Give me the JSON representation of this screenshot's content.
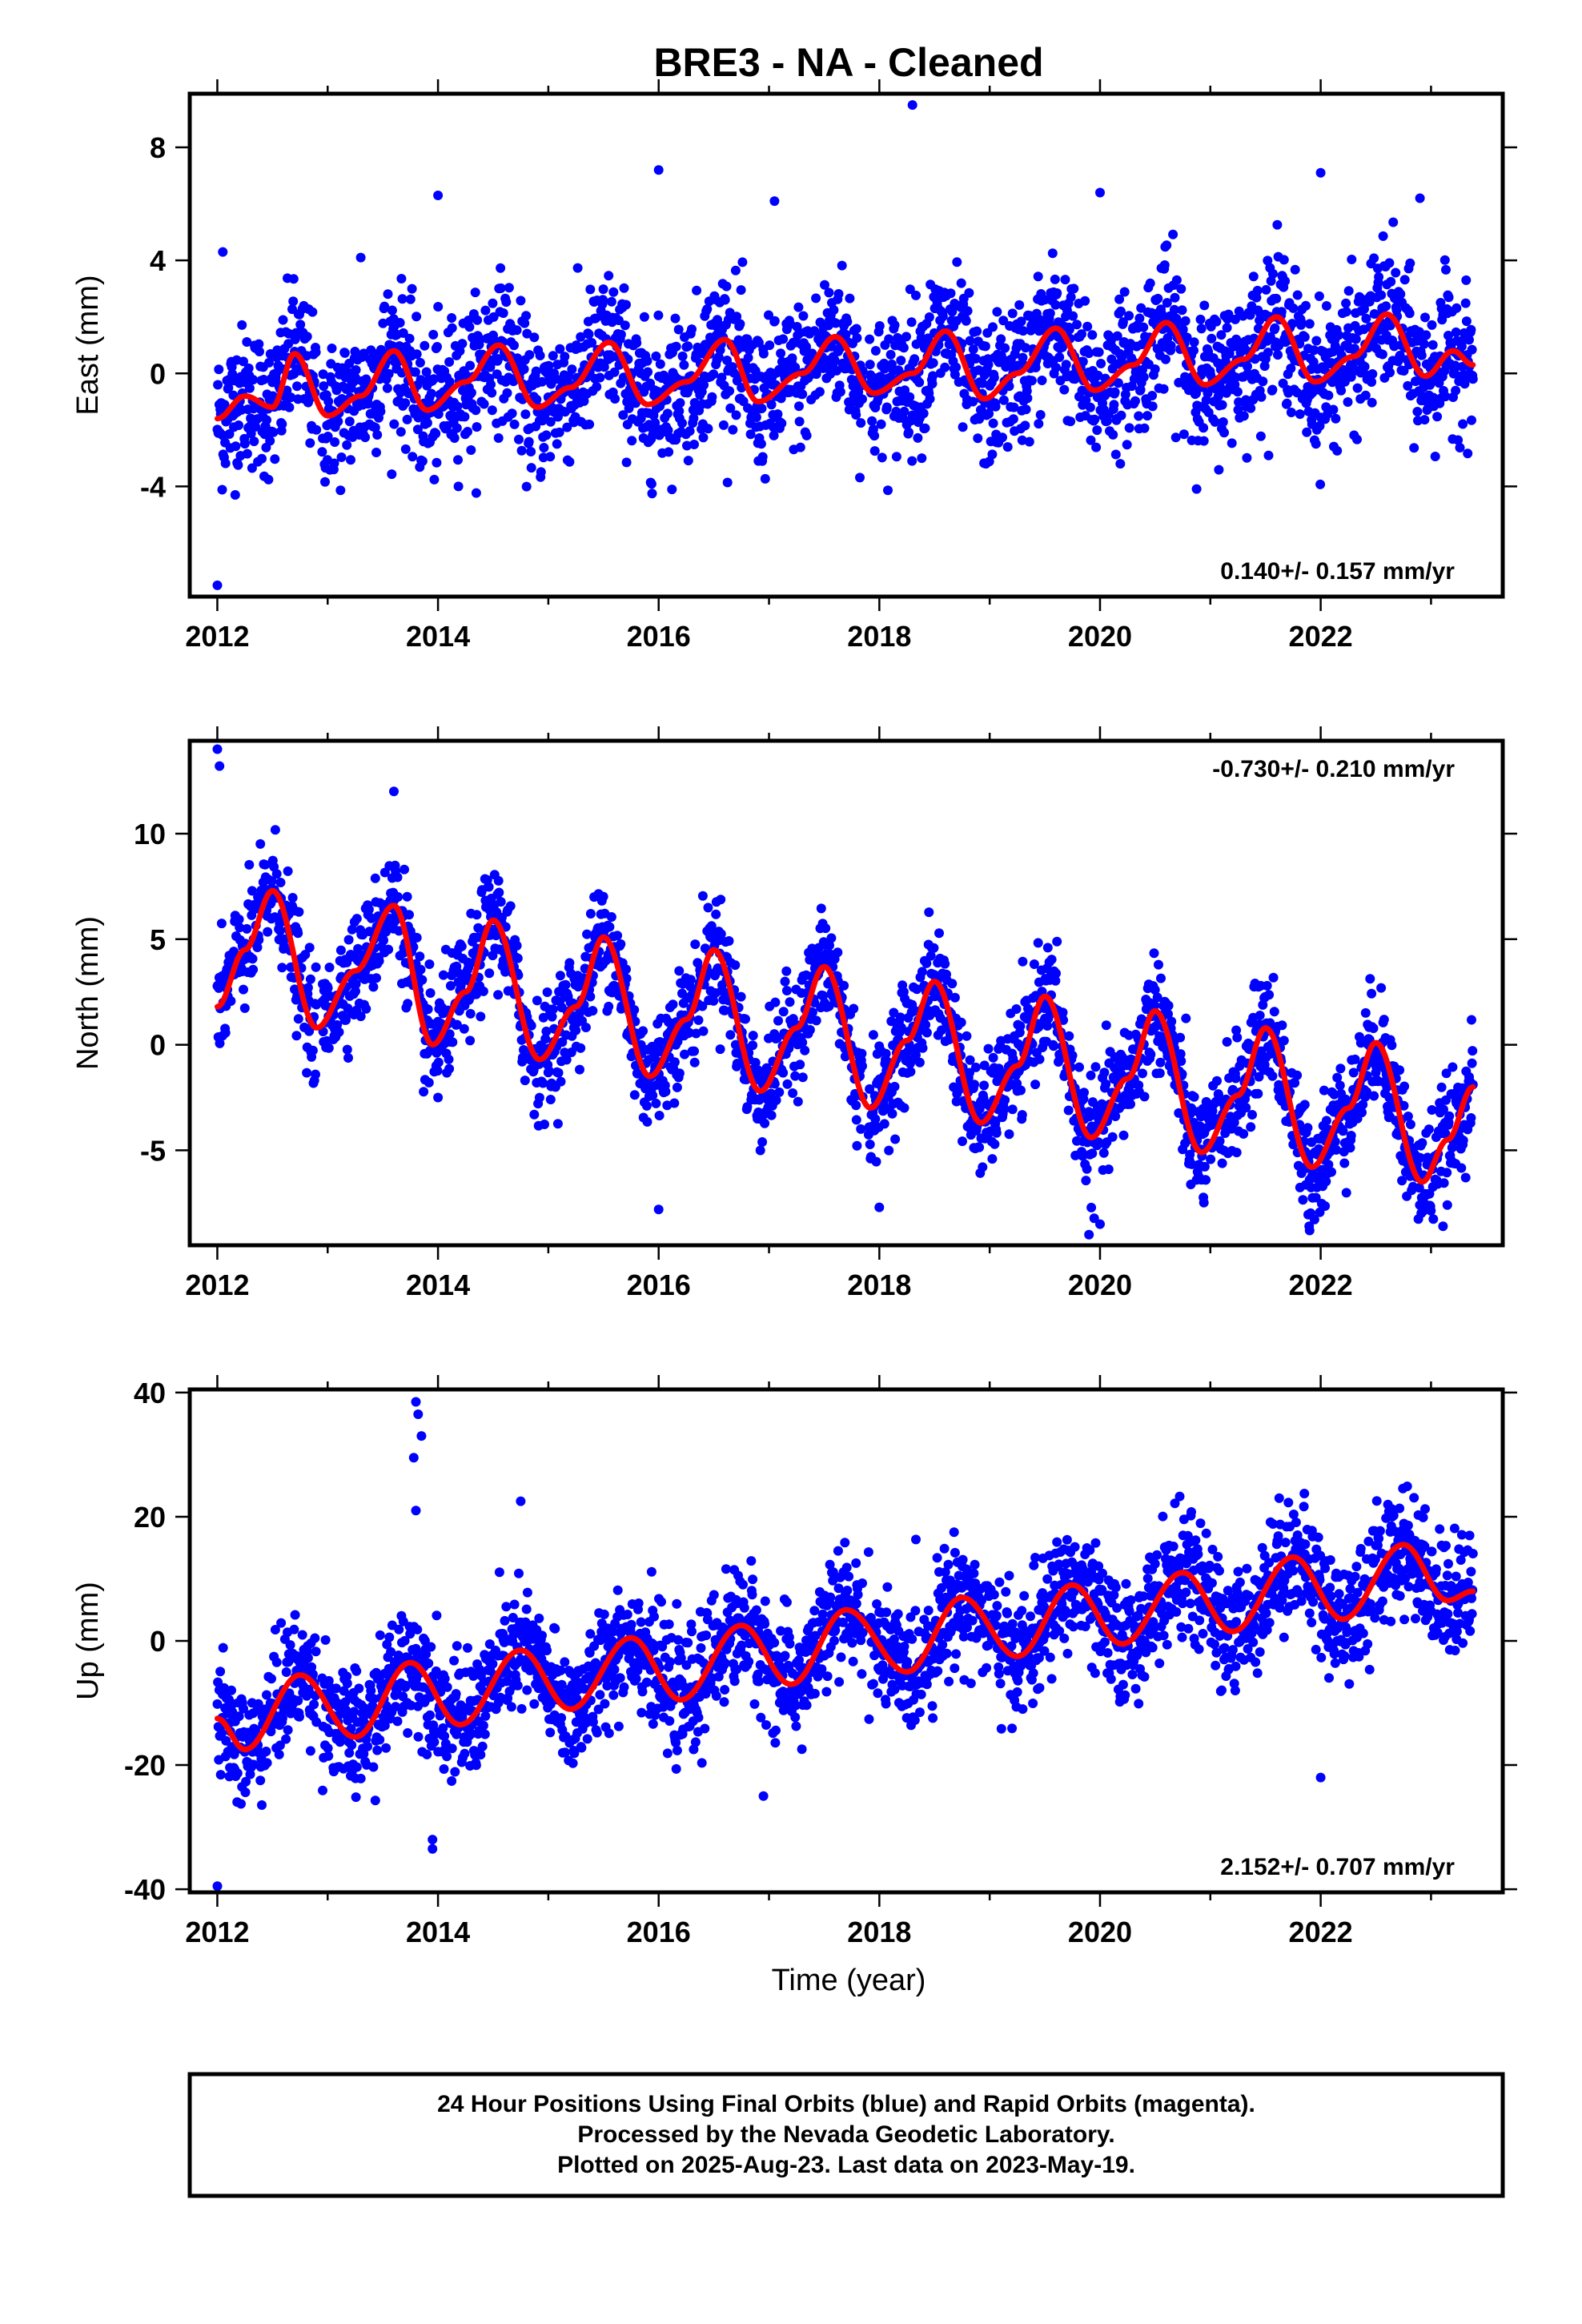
{
  "title": "BRE3  - NA - Cleaned",
  "colors": {
    "points": "#0000ff",
    "fit": "#ff0000",
    "frame": "#000000"
  },
  "x_axis": {
    "label": "Time (year)",
    "ticks": [
      "2012",
      "2014",
      "2016",
      "2018",
      "2020",
      "2022"
    ],
    "xlim": [
      2011.75,
      2023.65
    ]
  },
  "footer": {
    "line1": "24 Hour Positions Using Final Orbits (blue) and Rapid Orbits (magenta).",
    "line2": "Processed by the Nevada Geodetic Laboratory.",
    "line3": "Plotted on 2025-Aug-23. Last data on 2023-May-19."
  },
  "chart_data": [
    {
      "type": "scatter",
      "component": "East",
      "ylabel": "East (mm)",
      "ylim": [
        -7.9,
        9.9
      ],
      "yticks": [
        "-4",
        "0",
        "4",
        "8"
      ],
      "ytick_values": [
        -4,
        0,
        4,
        8
      ],
      "rate": "0.140+/- 0.157 mm/yr",
      "rate_position": "bottom-right",
      "time_range": [
        2012.0,
        2023.38
      ],
      "fit_series": {
        "x": [
          2012.0,
          2012.25,
          2012.5,
          2012.7,
          2013.0,
          2013.3,
          2013.6,
          2013.9,
          2014.25,
          2014.55,
          2014.9,
          2015.2,
          2015.55,
          2015.9,
          2016.25,
          2016.6,
          2016.9,
          2017.3,
          2017.6,
          2017.95,
          2018.3,
          2018.6,
          2018.95,
          2019.25,
          2019.6,
          2019.95,
          2020.3,
          2020.6,
          2020.95,
          2021.3,
          2021.6,
          2021.95,
          2022.3,
          2022.6,
          2022.95,
          2023.2,
          2023.38
        ],
        "y": [
          -1.6,
          -0.8,
          -1.2,
          0.7,
          -1.5,
          -0.8,
          0.8,
          -1.3,
          -0.3,
          1.0,
          -1.2,
          -0.5,
          1.1,
          -1.1,
          -0.3,
          1.2,
          -1.0,
          0.0,
          1.3,
          -0.7,
          0.0,
          1.5,
          -0.9,
          0.0,
          1.6,
          -0.6,
          0.3,
          1.8,
          -0.4,
          0.5,
          2.0,
          -0.3,
          0.6,
          2.1,
          -0.1,
          0.8,
          0.3
        ]
      },
      "scatter_model": {
        "trend_start": -2.3,
        "trend_end": 0.0,
        "noise": 1.25,
        "spread_note": "daily positions"
      },
      "outliers": {
        "x": [
          2012.0,
          2012.05,
          2014.0,
          2016.0,
          2018.3,
          2020.0,
          2022.0,
          2022.9,
          2013.3,
          2017.05
        ],
        "y": [
          -7.5,
          4.3,
          6.3,
          7.2,
          9.5,
          6.4,
          7.1,
          6.2,
          4.1,
          6.1
        ]
      }
    },
    {
      "type": "scatter",
      "component": "North",
      "ylabel": "North (mm)",
      "ylim": [
        -9.5,
        14.4
      ],
      "yticks": [
        "-5",
        "0",
        "5",
        "10"
      ],
      "ytick_values": [
        -5,
        0,
        5,
        10
      ],
      "rate": "-0.730+/- 0.210 mm/yr",
      "rate_position": "top-right",
      "time_range": [
        2012.0,
        2023.38
      ],
      "fit_series": {
        "x": [
          2012.0,
          2012.25,
          2012.5,
          2012.9,
          2013.25,
          2013.6,
          2013.95,
          2014.25,
          2014.5,
          2014.92,
          2015.25,
          2015.5,
          2015.92,
          2016.25,
          2016.5,
          2016.92,
          2017.25,
          2017.5,
          2017.92,
          2018.25,
          2018.5,
          2018.92,
          2019.25,
          2019.5,
          2019.92,
          2020.25,
          2020.5,
          2020.92,
          2021.25,
          2021.5,
          2021.92,
          2022.25,
          2022.5,
          2022.92,
          2023.15,
          2023.38
        ],
        "y": [
          1.8,
          4.5,
          7.3,
          0.8,
          3.5,
          6.6,
          0.0,
          2.5,
          5.9,
          -0.7,
          1.8,
          5.1,
          -1.5,
          1.2,
          4.5,
          -2.2,
          0.8,
          3.7,
          -3.0,
          0.2,
          3.0,
          -3.7,
          -1.0,
          2.3,
          -4.4,
          -1.6,
          1.6,
          -5.1,
          -2.4,
          0.8,
          -5.8,
          -3.0,
          0.1,
          -6.5,
          -4.5,
          -2.0
        ]
      },
      "scatter_model": {
        "noise": 1.3,
        "spread_note": "daily positions"
      },
      "outliers": {
        "x": [
          2012.0,
          2012.02,
          2013.6,
          2014.0,
          2016.0,
          2018.0,
          2019.9,
          2020.0,
          2021.9
        ],
        "y": [
          14.0,
          13.2,
          12.0,
          -2.5,
          -7.8,
          -7.7,
          -9.0,
          -8.5,
          -8.8
        ]
      }
    },
    {
      "type": "scatter",
      "component": "Up",
      "ylabel": "Up (mm)",
      "ylim": [
        -40.5,
        40.5
      ],
      "yticks": [
        "-40",
        "-20",
        "0",
        "20",
        "40"
      ],
      "ytick_values": [
        -40,
        -20,
        0,
        20,
        40
      ],
      "rate": "2.152+/- 0.707 mm/yr",
      "rate_position": "bottom-right",
      "time_range": [
        2012.0,
        2023.38
      ],
      "fit_series": {
        "x": [
          2012.0,
          2012.25,
          2012.75,
          2013.25,
          2013.75,
          2014.2,
          2014.75,
          2015.2,
          2015.75,
          2016.2,
          2016.75,
          2017.2,
          2017.7,
          2018.25,
          2018.75,
          2019.25,
          2019.75,
          2020.2,
          2020.75,
          2021.2,
          2021.75,
          2022.2,
          2022.75,
          2023.15,
          2023.38
        ],
        "y": [
          -12.5,
          -17.5,
          -5.5,
          -15.5,
          -3.5,
          -13.5,
          -1.5,
          -11.0,
          0.5,
          -9.5,
          2.5,
          -7.0,
          5.0,
          -5.0,
          7.0,
          -2.5,
          9.0,
          -0.5,
          11.0,
          1.5,
          13.5,
          3.5,
          15.5,
          6.5,
          8.0
        ]
      },
      "scatter_model": {
        "noise": 4.8,
        "spread_note": "daily positions"
      },
      "outliers": {
        "x": [
          2013.8,
          2013.82,
          2013.85,
          2013.78,
          2013.8,
          2013.95,
          2012.0,
          2014.75,
          2016.95,
          2022.0,
          2013.95
        ],
        "y": [
          38.5,
          36.5,
          33.0,
          29.5,
          21.0,
          -33.5,
          -39.5,
          22.5,
          -25.0,
          -22.0,
          -32.0
        ]
      }
    }
  ]
}
